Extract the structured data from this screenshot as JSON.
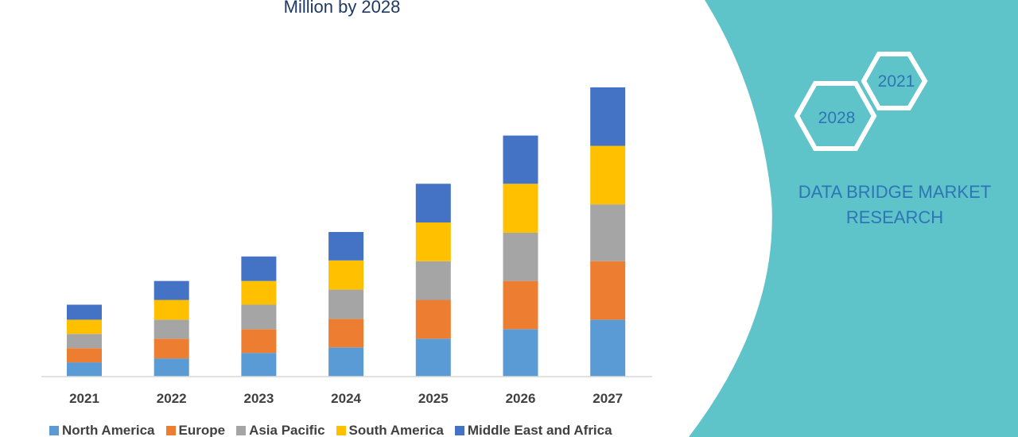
{
  "title": "Million by 2028",
  "brand": {
    "line1": "DATA BRIDGE MARKET",
    "line2": "RESEARCH",
    "badge_year_a": "2021",
    "badge_year_b": "2028",
    "accent_color": "#5ec4c9",
    "text_color": "#2e75b6"
  },
  "chart_data": {
    "type": "bar",
    "stacked": true,
    "categories": [
      "2021",
      "2022",
      "2023",
      "2024",
      "2025",
      "2026",
      "2027"
    ],
    "series": [
      {
        "name": "North America",
        "color": "#5b9bd5",
        "values": [
          18,
          23,
          30,
          37,
          48,
          60,
          72
        ]
      },
      {
        "name": "Europe",
        "color": "#ed7d31",
        "values": [
          18,
          25,
          30,
          36,
          49,
          61,
          74
        ]
      },
      {
        "name": "Asia Pacific",
        "color": "#a5a5a5",
        "values": [
          18,
          24,
          31,
          37,
          49,
          61,
          72
        ]
      },
      {
        "name": "South America",
        "color": "#ffc000",
        "values": [
          18,
          25,
          30,
          37,
          49,
          62,
          74
        ]
      },
      {
        "name": "Middle East and Africa",
        "color": "#4472c4",
        "values": [
          19,
          24,
          31,
          36,
          49,
          61,
          74
        ]
      }
    ],
    "ylim": [
      0,
      380
    ],
    "grid": false,
    "legend": "bottom"
  }
}
